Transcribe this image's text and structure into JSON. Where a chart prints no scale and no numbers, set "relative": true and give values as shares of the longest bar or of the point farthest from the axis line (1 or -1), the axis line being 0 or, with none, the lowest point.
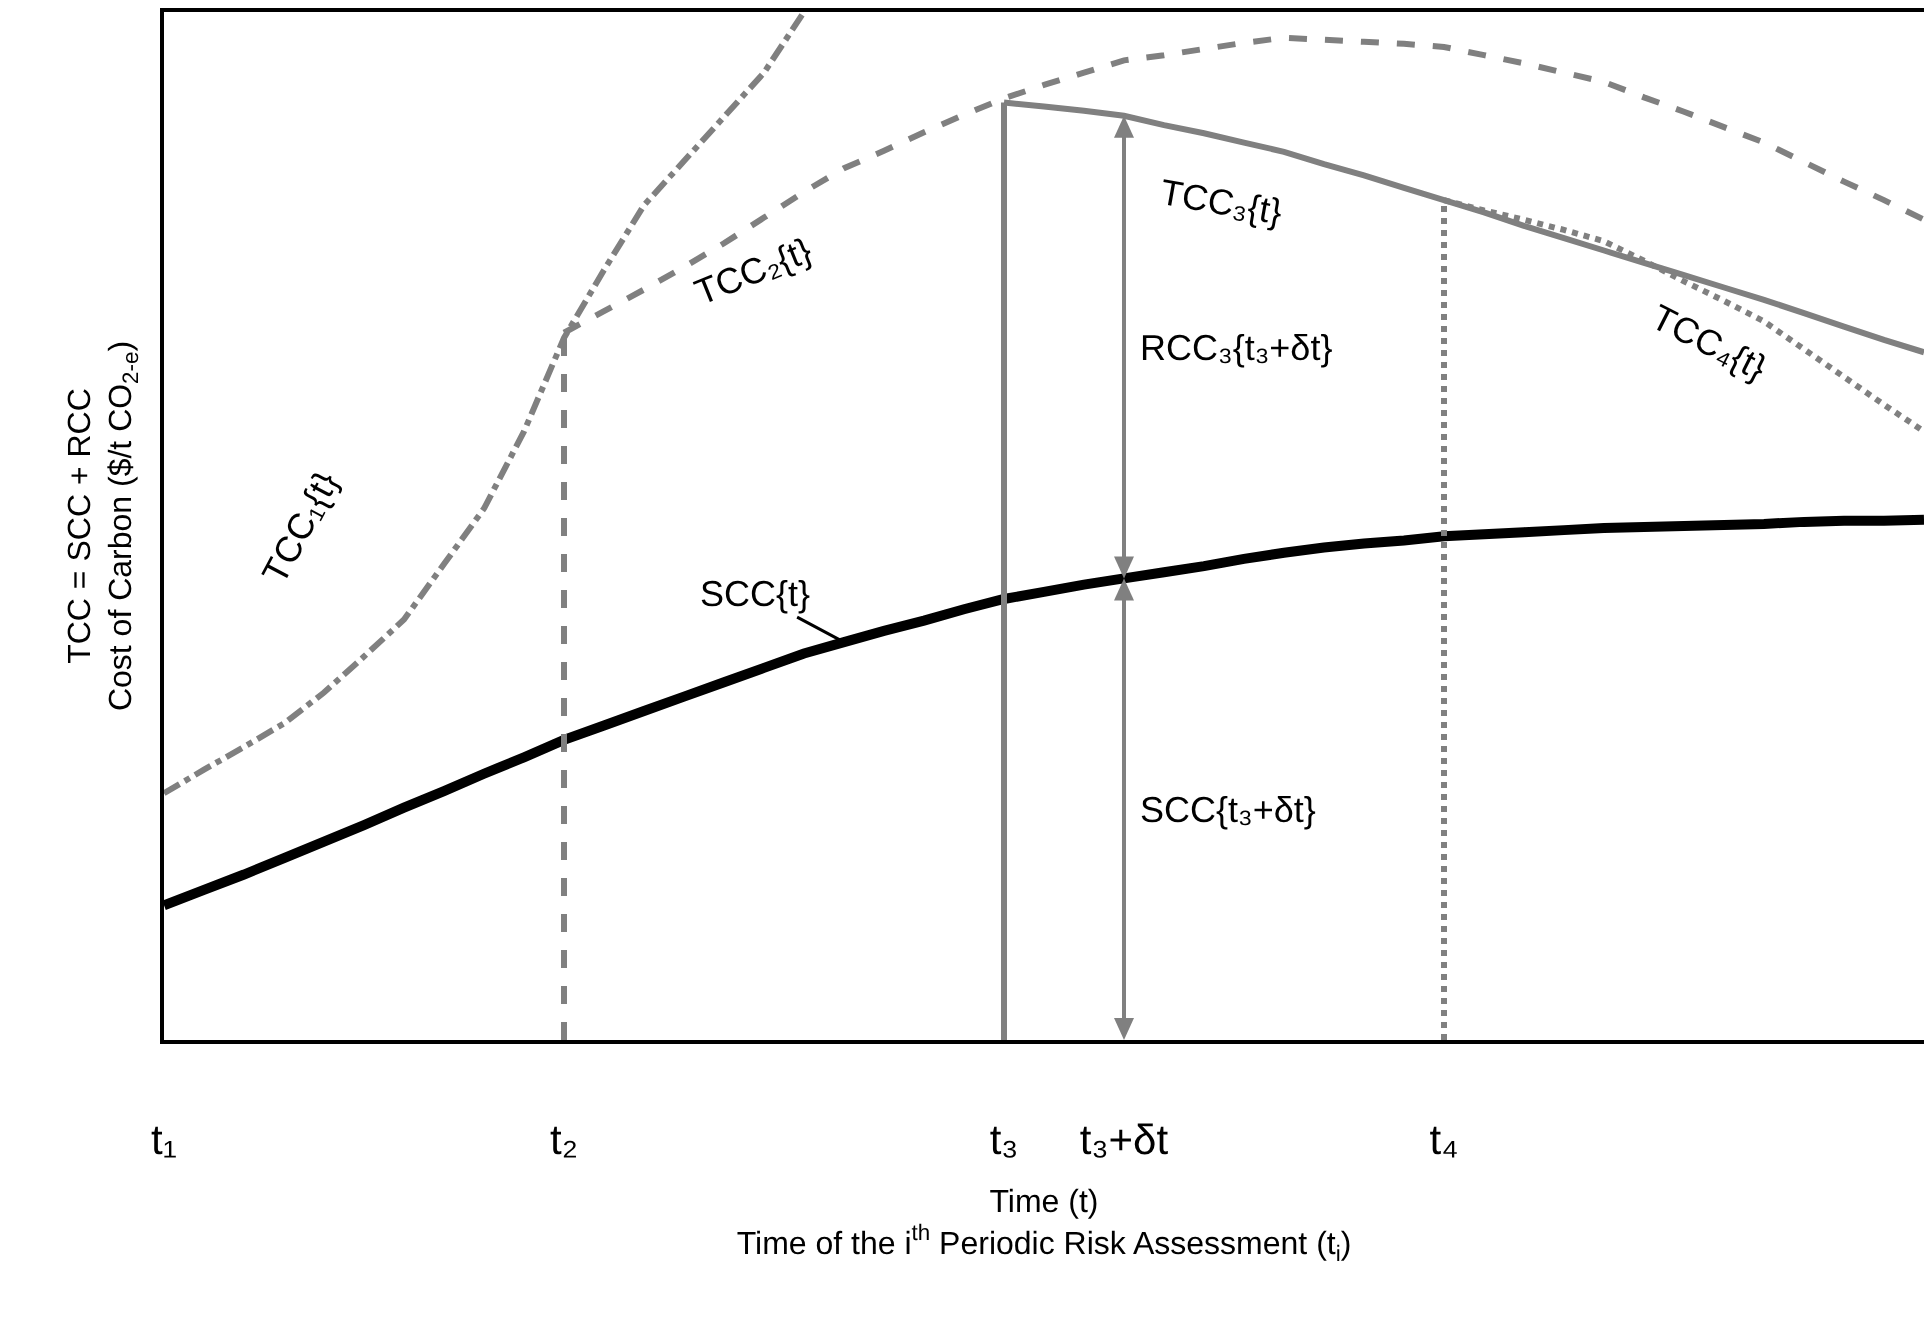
{
  "chart_data": {
    "type": "line",
    "relative": true,
    "xlabel": "Time (t)\nTime of the i$^{th}$ Periodic Risk Assessment (t$_{i}$)",
    "ylabel": "TCC = SCC + RCC\nCost of Carbon ($/t CO$_{2-e}$)",
    "categories": [
      "t₁",
      null,
      null,
      null,
      null,
      null,
      null,
      null,
      null,
      null,
      "t₂",
      null,
      null,
      null,
      null,
      null,
      null,
      null,
      null,
      null,
      null,
      "t₃",
      null,
      null,
      "t₃+δt",
      null,
      null,
      null,
      null,
      null,
      null,
      null,
      "t₄",
      null,
      null,
      null,
      null,
      null,
      null,
      null,
      null,
      null,
      null,
      null,
      null
    ],
    "marker": "none",
    "series": [
      {
        "name": "SCC{t}",
        "color": "#000000",
        "line_style": "solid",
        "values": [
          0.131,
          0.146,
          0.161,
          0.177,
          0.193,
          0.209,
          0.226,
          0.242,
          0.259,
          0.275,
          0.292,
          0.306,
          0.32,
          0.334,
          0.348,
          0.362,
          0.376,
          0.387,
          0.398,
          0.408,
          0.419,
          0.429,
          0.436,
          0.443,
          0.449,
          0.455,
          0.461,
          0.468,
          0.474,
          0.479,
          0.483,
          0.486,
          0.49,
          0.492,
          0.494,
          0.496,
          0.498,
          0.499,
          0.5,
          0.501,
          0.502,
          0.504,
          0.505,
          0.505,
          0.506
        ]
      },
      {
        "name": "TCC₁{t}",
        "color": "#808080",
        "line_style": "dashdot",
        "values": [
          0.24,
          0.263,
          0.285,
          0.308,
          0.338,
          0.373,
          0.409,
          0.463,
          0.517,
          0.592,
          0.683,
          0.749,
          0.812,
          0.855,
          0.898,
          0.941,
          1.0,
          null,
          null,
          null,
          null,
          null,
          null,
          null,
          null,
          null,
          null,
          null,
          null,
          null,
          null,
          null,
          null,
          null,
          null,
          null,
          null,
          null,
          null,
          null,
          null,
          null,
          null,
          null,
          null
        ]
      },
      {
        "name": "TCC₂{t}",
        "color": "#808080",
        "line_style": "dashed",
        "values": [
          null,
          null,
          null,
          null,
          null,
          null,
          null,
          null,
          null,
          null,
          0.688,
          0.709,
          0.73,
          0.752,
          0.775,
          0.8,
          0.825,
          0.848,
          0.865,
          0.883,
          0.9,
          0.916,
          0.929,
          0.941,
          0.953,
          0.958,
          0.964,
          0.97,
          0.975,
          0.973,
          0.971,
          0.969,
          0.966,
          0.958,
          0.95,
          0.941,
          0.932,
          0.917,
          0.903,
          0.888,
          0.873,
          0.854,
          0.835,
          0.817,
          0.798
        ]
      },
      {
        "name": "TCC₃{t}",
        "color": "#808080",
        "line_style": "solid",
        "values": [
          null,
          null,
          null,
          null,
          null,
          null,
          null,
          null,
          null,
          null,
          null,
          null,
          null,
          null,
          null,
          null,
          null,
          null,
          null,
          null,
          null,
          0.912,
          0.908,
          0.904,
          0.899,
          0.89,
          0.882,
          0.873,
          0.864,
          0.852,
          0.841,
          0.829,
          0.817,
          0.805,
          0.792,
          0.78,
          0.768,
          0.756,
          0.744,
          0.732,
          0.72,
          0.707,
          0.694,
          0.681,
          0.669
        ]
      },
      {
        "name": "TCC₄{t}",
        "color": "#808080",
        "line_style": "dotted",
        "values": [
          null,
          null,
          null,
          null,
          null,
          null,
          null,
          null,
          null,
          null,
          null,
          null,
          null,
          null,
          null,
          null,
          null,
          null,
          null,
          null,
          null,
          null,
          null,
          null,
          null,
          null,
          null,
          null,
          null,
          null,
          null,
          null,
          0.817,
          0.807,
          0.798,
          0.788,
          0.777,
          0.758,
          0.738,
          0.719,
          0.699,
          0.672,
          0.645,
          0.618,
          0.592
        ]
      }
    ],
    "ref_lines": [
      {
        "axis": "x",
        "value": "t₂",
        "color": "#808080",
        "line_style": "dashed"
      },
      {
        "axis": "x",
        "value": "t₃",
        "color": "#808080",
        "line_style": "solid"
      },
      {
        "axis": "x",
        "value": "t₄",
        "color": "#808080",
        "line_style": "dotted"
      }
    ],
    "annotations": [
      "RCC₃{t₃+δt}",
      "SCC{t₃+δt}"
    ]
  }
}
